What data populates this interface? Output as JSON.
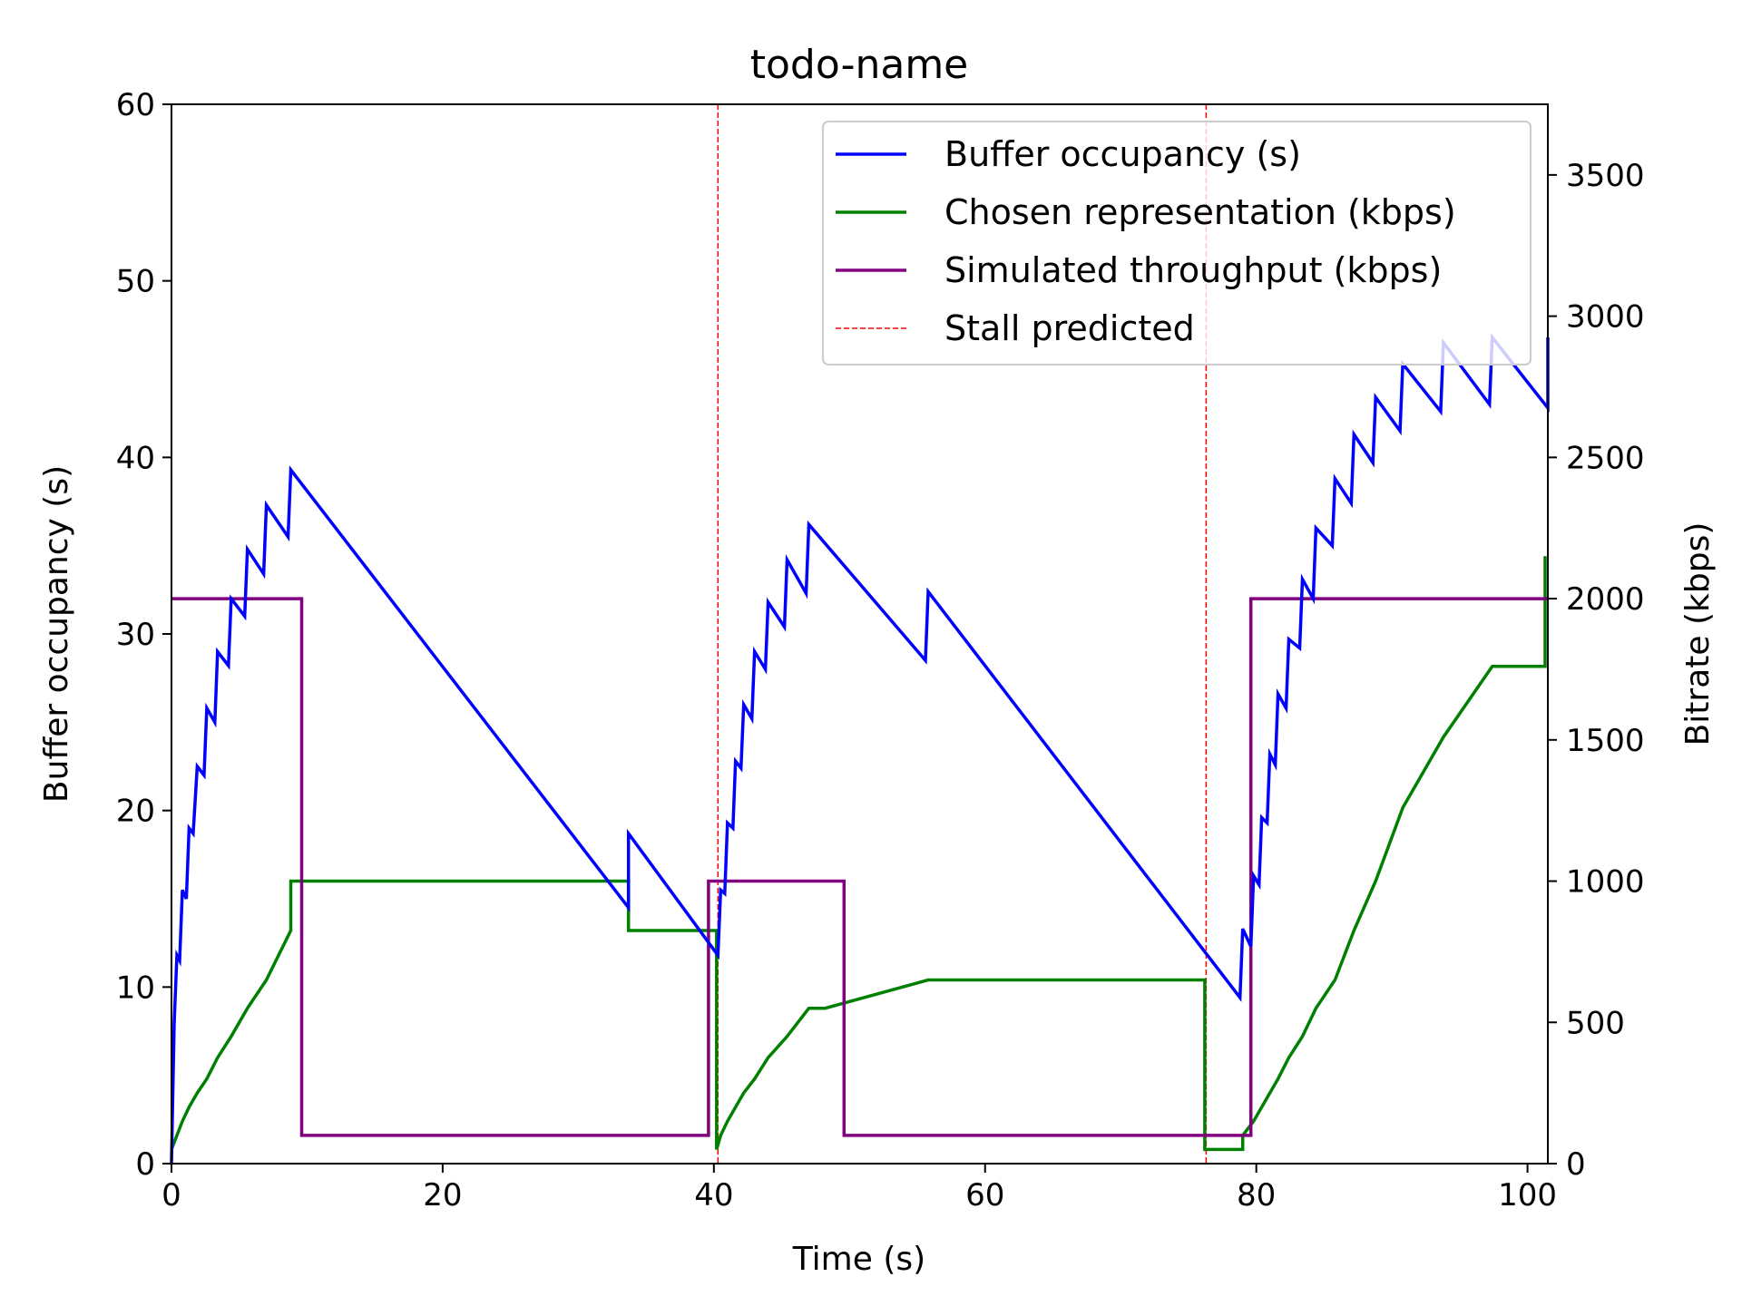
{
  "chart_data": {
    "type": "line",
    "title": "todo-name",
    "xlabel": "Time (s)",
    "ylabel_left": "Buffer occupancy (s)",
    "ylabel_right": "Bitrate (kbps)",
    "xlim": [
      0,
      101.5
    ],
    "ylim_left": [
      0,
      60
    ],
    "ylim_right": [
      0,
      3750
    ],
    "x_ticks": [
      0,
      20,
      40,
      60,
      80,
      100
    ],
    "y_ticks_left": [
      0,
      10,
      20,
      30,
      40,
      50,
      60
    ],
    "y_ticks_right": [
      0,
      500,
      1000,
      1500,
      2000,
      2500,
      3000,
      3500
    ],
    "grid": false,
    "legend_position": "top-right",
    "colors": {
      "buffer": "#0000ff",
      "representation": "#008000",
      "throughput": "#800080",
      "stall": "#ff0000",
      "ylabel_left": "#0000ff"
    },
    "series": [
      {
        "name": "Buffer occupancy (s)",
        "axis": "left",
        "style": "solid",
        "points": [
          [
            0,
            0
          ],
          [
            0.2,
            8
          ],
          [
            0.4,
            11.8
          ],
          [
            0.6,
            11.5
          ],
          [
            0.8,
            15.5
          ],
          [
            1.1,
            15
          ],
          [
            1.3,
            19
          ],
          [
            1.6,
            18.7
          ],
          [
            1.9,
            22.5
          ],
          [
            2.4,
            22
          ],
          [
            2.6,
            25.8
          ],
          [
            3.2,
            25
          ],
          [
            3.4,
            29
          ],
          [
            4.2,
            28.2
          ],
          [
            4.4,
            32
          ],
          [
            5.4,
            31
          ],
          [
            5.6,
            34.8
          ],
          [
            6.8,
            33.4
          ],
          [
            7,
            37.3
          ],
          [
            8.6,
            35.5
          ],
          [
            8.8,
            39.3
          ],
          [
            33.7,
            14.5
          ],
          [
            33.7,
            18.7
          ],
          [
            40.3,
            11.8
          ],
          [
            40.5,
            15.5
          ],
          [
            40.8,
            15.3
          ],
          [
            41,
            19.3
          ],
          [
            41.4,
            19
          ],
          [
            41.6,
            22.8
          ],
          [
            42,
            22.4
          ],
          [
            42.2,
            26
          ],
          [
            42.8,
            25.2
          ],
          [
            43,
            29
          ],
          [
            43.8,
            28
          ],
          [
            44,
            31.8
          ],
          [
            45.2,
            30.4
          ],
          [
            45.4,
            34.2
          ],
          [
            46.8,
            32.3
          ],
          [
            47,
            36.2
          ],
          [
            55.6,
            28.5
          ],
          [
            55.8,
            32.4
          ],
          [
            78.8,
            9.4
          ],
          [
            79,
            13.3
          ],
          [
            79.6,
            12.3
          ],
          [
            79.8,
            16.3
          ],
          [
            80.2,
            15.8
          ],
          [
            80.4,
            19.6
          ],
          [
            80.8,
            19.3
          ],
          [
            81,
            23.2
          ],
          [
            81.4,
            22.6
          ],
          [
            81.6,
            26.6
          ],
          [
            82.2,
            25.8
          ],
          [
            82.4,
            29.7
          ],
          [
            83.2,
            29.2
          ],
          [
            83.4,
            33.1
          ],
          [
            84.2,
            32
          ],
          [
            84.4,
            36
          ],
          [
            85.6,
            35
          ],
          [
            85.8,
            38.8
          ],
          [
            87,
            37.4
          ],
          [
            87.2,
            41.3
          ],
          [
            88.6,
            39.7
          ],
          [
            88.8,
            43.4
          ],
          [
            90.6,
            41.5
          ],
          [
            90.8,
            45.3
          ],
          [
            93.6,
            42.6
          ],
          [
            93.8,
            46.5
          ],
          [
            97.2,
            43
          ],
          [
            97.4,
            46.8
          ],
          [
            101.5,
            42.8
          ],
          [
            101.5,
            46.8
          ]
        ]
      },
      {
        "name": "Chosen representation (kbps)",
        "axis": "right",
        "style": "step",
        "points": [
          [
            0,
            50
          ],
          [
            0.4,
            100
          ],
          [
            0.8,
            150
          ],
          [
            1.3,
            200
          ],
          [
            1.9,
            250
          ],
          [
            2.6,
            300
          ],
          [
            3.4,
            375
          ],
          [
            4.4,
            450
          ],
          [
            5.6,
            550
          ],
          [
            7,
            650
          ],
          [
            8.8,
            825
          ],
          [
            8.8,
            1000
          ],
          [
            33.7,
            1000
          ],
          [
            33.7,
            825
          ],
          [
            40.2,
            825
          ],
          [
            40.2,
            50
          ],
          [
            40.5,
            100
          ],
          [
            41,
            150
          ],
          [
            41.6,
            200
          ],
          [
            42.2,
            250
          ],
          [
            43,
            300
          ],
          [
            44,
            375
          ],
          [
            45.4,
            450
          ],
          [
            47,
            550
          ],
          [
            48.2,
            550
          ],
          [
            55.8,
            650
          ],
          [
            76.2,
            650
          ],
          [
            76.2,
            50
          ],
          [
            79,
            50
          ],
          [
            79,
            100
          ],
          [
            79.8,
            150
          ],
          [
            80.4,
            200
          ],
          [
            81,
            250
          ],
          [
            81.6,
            300
          ],
          [
            82.4,
            375
          ],
          [
            83.4,
            450
          ],
          [
            84.4,
            550
          ],
          [
            85.8,
            650
          ],
          [
            87.2,
            825
          ],
          [
            88.8,
            1000
          ],
          [
            90.8,
            1260
          ],
          [
            93.8,
            1510
          ],
          [
            97.4,
            1760
          ],
          [
            101.3,
            1760
          ],
          [
            101.3,
            2150
          ]
        ]
      },
      {
        "name": "Simulated throughput (kbps)",
        "axis": "right",
        "style": "step",
        "points": [
          [
            0,
            2000
          ],
          [
            9.6,
            2000
          ],
          [
            9.6,
            100
          ],
          [
            39.6,
            100
          ],
          [
            39.6,
            1000
          ],
          [
            49.6,
            1000
          ],
          [
            49.6,
            100
          ],
          [
            79.6,
            100
          ],
          [
            79.6,
            2000
          ],
          [
            101.5,
            2000
          ]
        ]
      },
      {
        "name": "Stall predicted",
        "axis": "vertical",
        "style": "dashed",
        "x_values": [
          40.3,
          76.3
        ]
      }
    ]
  }
}
